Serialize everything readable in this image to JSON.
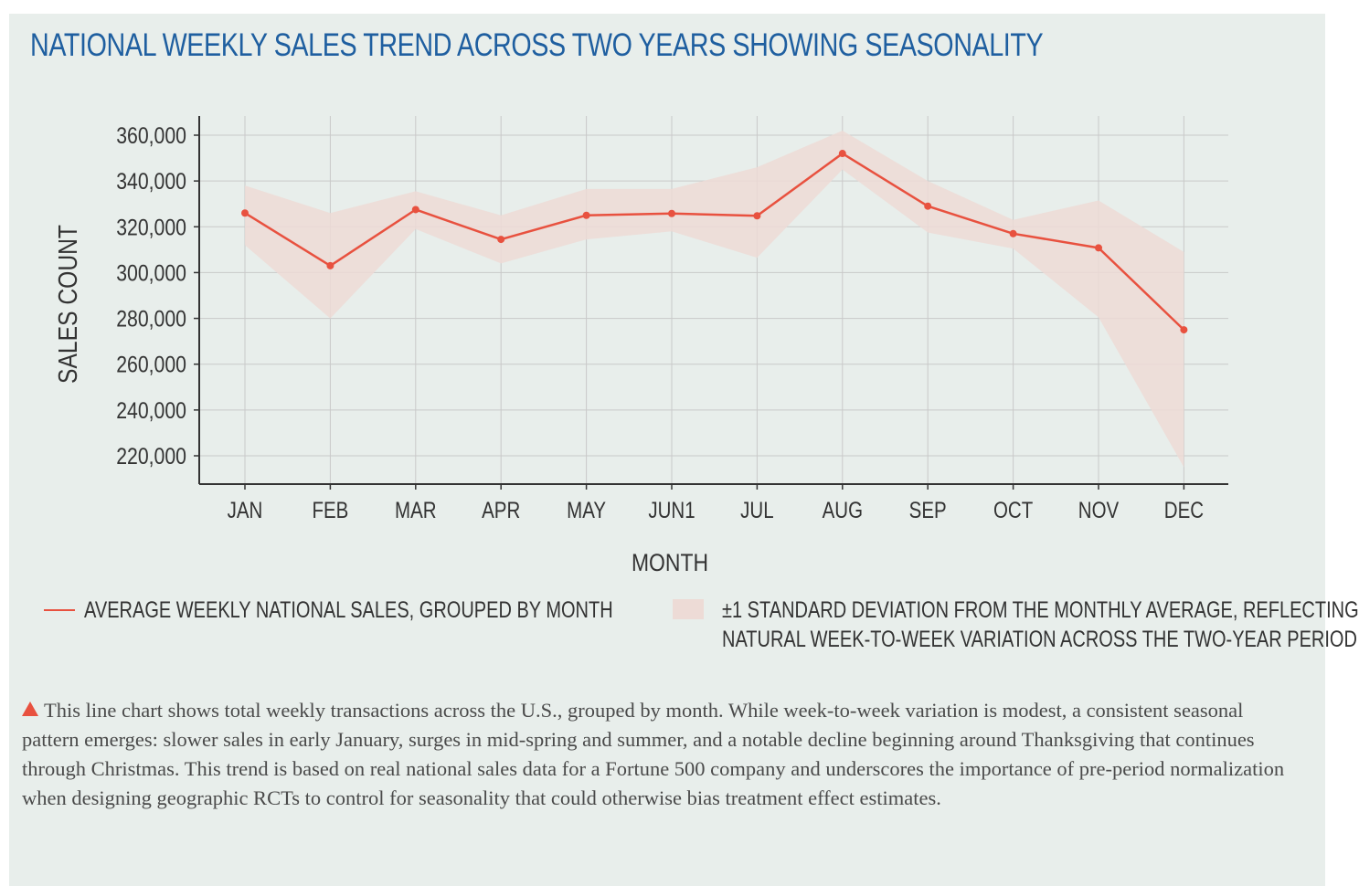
{
  "title": "NATIONAL WEEKLY SALES TREND ACROSS TWO YEARS SHOWING SEASONALITY",
  "legend": {
    "line_label": "AVERAGE WEEKLY NATIONAL SALES, GROUPED BY MONTH",
    "band_label_line1": "±1 STANDARD DEVIATION FROM THE MONTHLY AVERAGE, REFLECTING",
    "band_label_line2": "NATURAL WEEK-TO-WEEK VARIATION ACROSS THE TWO-YEAR PERIOD"
  },
  "caption": {
    "icon": "triangle-up-icon",
    "text": "This line chart shows total weekly transactions across the U.S., grouped by month. While week-to-week variation is modest, a consistent seasonal pattern emerges: slower sales in early January, surges in mid-spring and summer, and a notable decline beginning around Thanksgiving that continues through Christmas. This trend is based on real national sales data for a Fortune 500 company and underscores the importance of pre-period normalization when designing geographic RCTs to control for seasonality that could otherwise bias treatment effect estimates."
  },
  "colors": {
    "title": "#1f5fa0",
    "line": "#e8513f",
    "band": "#eddbd6",
    "background": "#e8eeeb",
    "grid": "#c9c9c9"
  },
  "chart_data": {
    "type": "line",
    "xlabel": "MONTH",
    "ylabel": "SALES COUNT",
    "categories": [
      "JAN",
      "FEB",
      "MAR",
      "APR",
      "MAY",
      "JUN1",
      "JUL",
      "AUG",
      "SEP",
      "OCT",
      "NOV",
      "DEC"
    ],
    "series": [
      {
        "name": "AVERAGE WEEKLY NATIONAL SALES, GROUPED BY MONTH",
        "values": [
          326000,
          303000,
          327500,
          314500,
          325000,
          325800,
          324800,
          352000,
          329000,
          317000,
          310800,
          275000
        ]
      }
    ],
    "band": {
      "name": "±1 STANDARD DEVIATION FROM THE MONTHLY AVERAGE, REFLECTING NATURAL WEEK-TO-WEEK VARIATION ACROSS THE TWO-YEAR PERIOD",
      "upper": [
        338000,
        326000,
        335500,
        325000,
        336500,
        336500,
        346000,
        362000,
        340000,
        323000,
        331500,
        309000
      ],
      "lower": [
        312000,
        280000,
        319000,
        304000,
        314500,
        318000,
        306500,
        345000,
        317500,
        310500,
        280500,
        215000
      ]
    },
    "ylim": [
      212000,
      368000
    ],
    "yticks": [
      220000,
      240000,
      260000,
      280000,
      300000,
      320000,
      340000,
      360000
    ],
    "ytick_labels": [
      "220,000",
      "240,000",
      "260,000",
      "280,000",
      "300,000",
      "320,000",
      "340,000",
      "360,000"
    ],
    "grid": true
  }
}
